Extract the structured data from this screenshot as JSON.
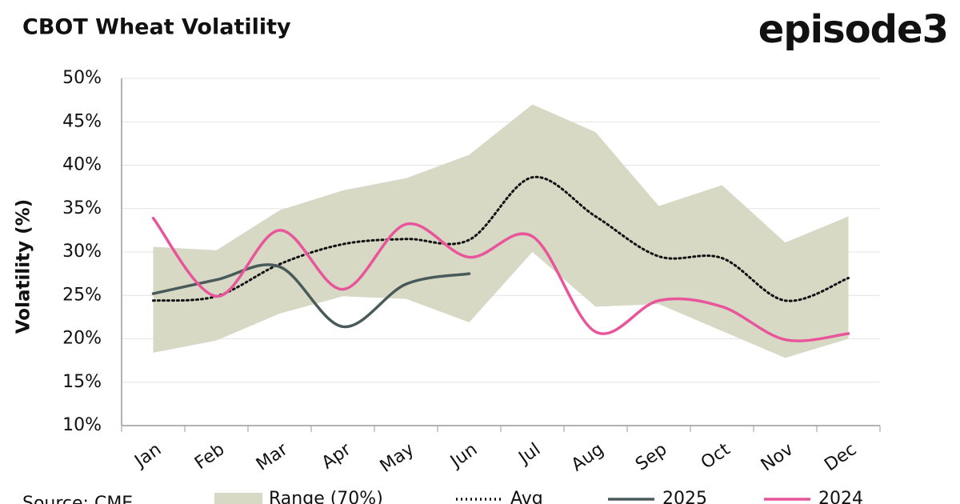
{
  "chart_data": {
    "type": "line",
    "title": "CBOT Wheat Volatility",
    "brand": "episode3",
    "y_label": "Volatility (%)",
    "source": "Source: CME",
    "categories": [
      "Jan",
      "Feb",
      "Mar",
      "Apr",
      "May",
      "Jun",
      "Jul",
      "Aug",
      "Sep",
      "Oct",
      "Nov",
      "Dec"
    ],
    "series": [
      {
        "name": "Range (70%)",
        "color": "#d7d9c5",
        "upper": [
          30.6,
          30.2,
          34.8,
          37.1,
          38.5,
          41.2,
          47.0,
          43.8,
          35.3,
          37.7,
          31.1,
          34.1
        ],
        "lower": [
          18.4,
          19.8,
          22.9,
          24.9,
          24.6,
          21.9,
          30.0,
          23.7,
          24.0,
          20.9,
          17.8,
          20.0
        ]
      },
      {
        "name": "Avg",
        "color": "#111111",
        "values": [
          24.4,
          24.9,
          28.6,
          30.9,
          31.5,
          31.4,
          38.6,
          34.1,
          29.5,
          29.3,
          24.4,
          27.0
        ]
      },
      {
        "name": "2025",
        "color": "#4a5a5a",
        "values": [
          25.2,
          26.8,
          28.3,
          21.4,
          26.3,
          27.5,
          null,
          null,
          null,
          null,
          null,
          null
        ]
      },
      {
        "name": "2024",
        "color": "#e8559a",
        "values": [
          33.9,
          24.9,
          32.5,
          25.7,
          33.2,
          29.4,
          31.8,
          20.8,
          24.4,
          23.7,
          19.9,
          20.6
        ]
      }
    ],
    "ylim": [
      10,
      50
    ],
    "yticks": [
      {
        "value": 10,
        "label": "10%"
      },
      {
        "value": 15,
        "label": "15%"
      },
      {
        "value": 20,
        "label": "20%"
      },
      {
        "value": 25,
        "label": "25%"
      },
      {
        "value": 30,
        "label": "30%"
      },
      {
        "value": 35,
        "label": "35%"
      },
      {
        "value": 40,
        "label": "40%"
      },
      {
        "value": 45,
        "label": "45%"
      },
      {
        "value": 50,
        "label": "50%"
      }
    ],
    "grid": true
  }
}
